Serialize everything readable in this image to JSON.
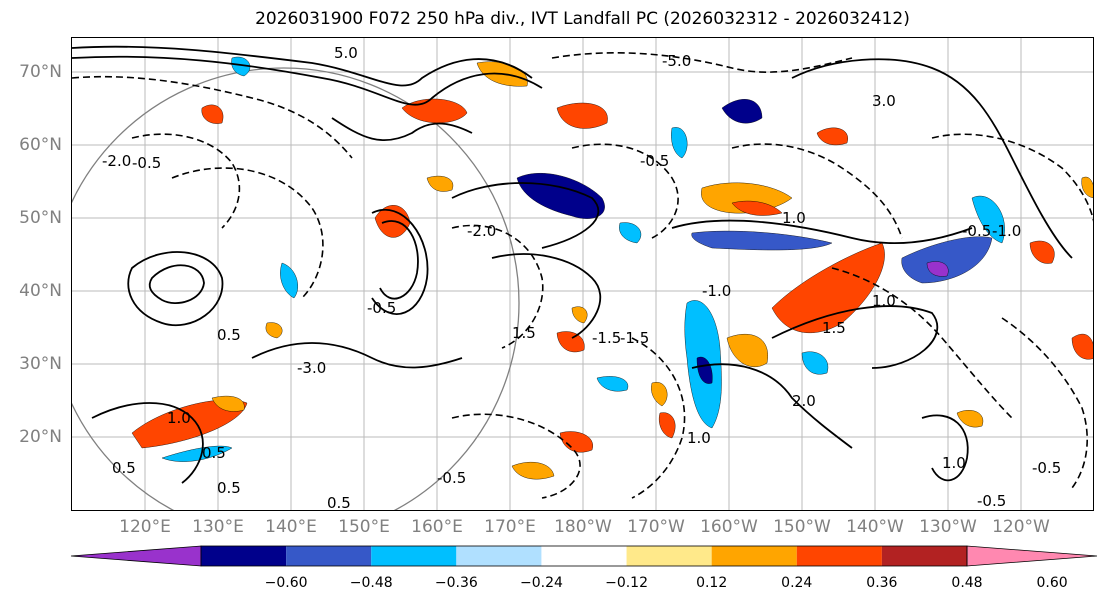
{
  "title": "2026031900 F072 250 hPa div., IVT Landfall PC (2026032312 - 2026032412)",
  "lat_labels": [
    "70°N",
    "60°N",
    "50°N",
    "40°N",
    "30°N",
    "20°N"
  ],
  "lon_labels": [
    "120°E",
    "130°E",
    "140°E",
    "150°E",
    "160°E",
    "170°E",
    "180°W",
    "170°W",
    "160°W",
    "150°W",
    "140°W",
    "130°W",
    "120°W"
  ],
  "colorbar": {
    "ticks": [
      "−0.60",
      "−0.48",
      "−0.36",
      "−0.24",
      "−0.12",
      "0.12",
      "0.24",
      "0.36",
      "0.48",
      "0.60"
    ],
    "colors": [
      "#9932cc",
      "#00008b",
      "#3658c8",
      "#00bfff",
      "#b0e0ff",
      "#ffffff",
      "#ffe98a",
      "#ffa500",
      "#ff4500",
      "#b22222",
      "#ff88b0"
    ]
  },
  "contour_labels": [
    "5.0",
    "-5.0",
    "3.0",
    "-2.0",
    "1.0",
    "0.5",
    "-0.5",
    "-1.0",
    "1.5",
    "-1.5",
    "-3.0",
    "2.0",
    "-2.0",
    "-0.5",
    "1.0",
    "0.5",
    "-1.0",
    "-0.5",
    "0.5",
    "-0.5",
    "1.5",
    "-1.5",
    "1.0",
    "0.5",
    "-0.5",
    "1.0",
    "-0.5",
    "0.5",
    "1.0",
    "-0.5"
  ]
}
